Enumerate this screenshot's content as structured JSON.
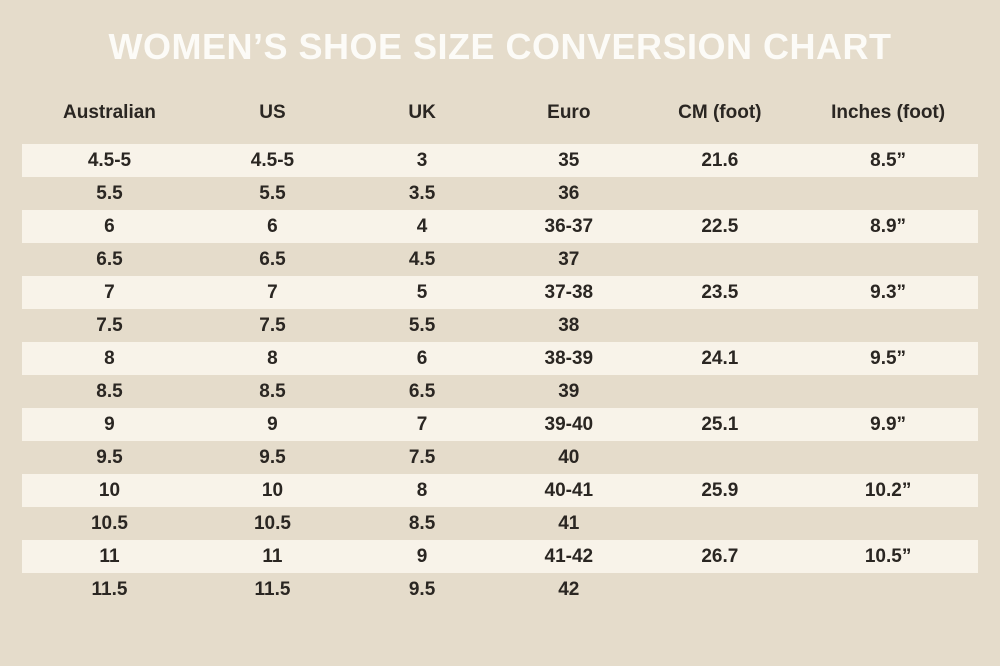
{
  "title": "WOMEN’S SHOE SIZE CONVERSION CHART",
  "colors": {
    "background": "#e5dccb",
    "stripe": "#f8f3e9",
    "text": "#2a2622",
    "title_text": "#fcfbf7"
  },
  "chart_data": {
    "type": "table",
    "title": "WOMEN’S SHOE SIZE CONVERSION CHART",
    "columns": [
      "Australian",
      "US",
      "UK",
      "Euro",
      "CM (foot)",
      "Inches (foot)"
    ],
    "rows": [
      [
        "4.5-5",
        "4.5-5",
        "3",
        "35",
        "21.6",
        "8.5”"
      ],
      [
        "5.5",
        "5.5",
        "3.5",
        "36",
        "",
        ""
      ],
      [
        "6",
        "6",
        "4",
        "36-37",
        "22.5",
        "8.9”"
      ],
      [
        "6.5",
        "6.5",
        "4.5",
        "37",
        "",
        ""
      ],
      [
        "7",
        "7",
        "5",
        "37-38",
        "23.5",
        "9.3”"
      ],
      [
        "7.5",
        "7.5",
        "5.5",
        "38",
        "",
        ""
      ],
      [
        "8",
        "8",
        "6",
        "38-39",
        "24.1",
        "9.5”"
      ],
      [
        "8.5",
        "8.5",
        "6.5",
        "39",
        "",
        ""
      ],
      [
        "9",
        "9",
        "7",
        "39-40",
        "25.1",
        "9.9”"
      ],
      [
        "9.5",
        "9.5",
        "7.5",
        "40",
        "",
        ""
      ],
      [
        "10",
        "10",
        "8",
        "40-41",
        "25.9",
        "10.2”"
      ],
      [
        "10.5",
        "10.5",
        "8.5",
        "41",
        "",
        ""
      ],
      [
        "11",
        "11",
        "9",
        "41-42",
        "26.7",
        "10.5”"
      ],
      [
        "11.5",
        "11.5",
        "9.5",
        "42",
        "",
        ""
      ]
    ],
    "layout": {
      "stripe_pattern": "every other row starting with first data row",
      "grid": "off",
      "alignment": "center"
    }
  }
}
